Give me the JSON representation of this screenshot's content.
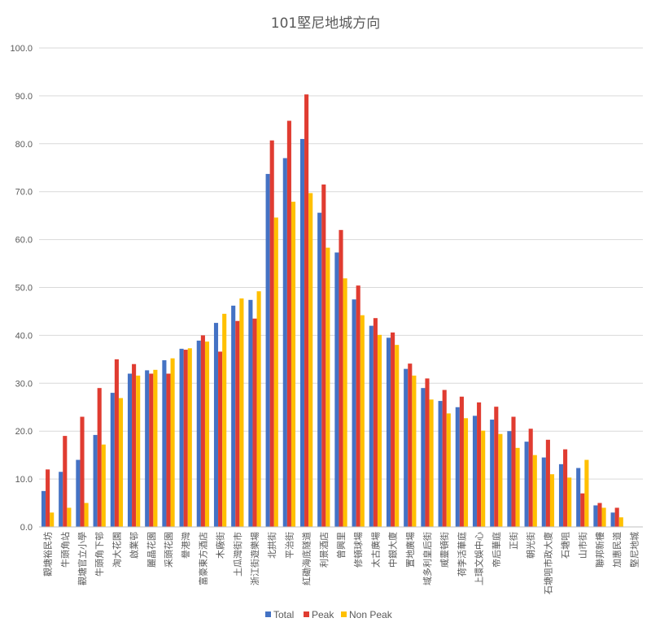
{
  "chart_data": {
    "type": "bar",
    "title": "101堅尼地城方向",
    "xlabel": "",
    "ylabel": "",
    "ylim": [
      0,
      100
    ],
    "yticks": [
      "0.0",
      "10.0",
      "20.0",
      "30.0",
      "40.0",
      "50.0",
      "60.0",
      "70.0",
      "80.0",
      "90.0",
      "100.0"
    ],
    "grid": true,
    "legend": "bottom",
    "categories": [
      "觀塘裕民坊",
      "牛頭角站",
      "觀塘官立小學",
      "牛頭角下邨",
      "淘大花園",
      "啟業邨",
      "麗晶花園",
      "采頭花園",
      "譽港灣",
      "富豪東方酒店",
      "木廠街",
      "土瓜灣街市",
      "浙江街遊樂場",
      "北拱街",
      "平治街",
      "紅磡海底隧道",
      "利景酒店",
      "曾興里",
      "修頓球場",
      "太古廣場",
      "中銀大廈",
      "置地廣場",
      "域多利皇后街",
      "威靈頓街",
      "荷李活華庭",
      "上環文娛中心",
      "帝后華庭",
      "正街",
      "朝光街",
      "石塘咀市政大廈",
      "石塘咀",
      "山市街",
      "聯邦新樓",
      "加惠民道",
      "堅尼地城"
    ],
    "series": [
      {
        "name": "Total",
        "color": "#4472C4",
        "values": [
          7.5,
          11.5,
          14.0,
          19.2,
          28.0,
          32.0,
          32.7,
          34.8,
          37.2,
          38.9,
          42.6,
          46.2,
          47.4,
          73.7,
          77.0,
          81.0,
          65.6,
          57.3,
          47.5,
          42.0,
          39.5,
          33.0,
          29.0,
          26.3,
          25.0,
          23.2,
          22.4,
          20.0,
          17.8,
          14.5,
          13.1,
          12.3,
          4.5,
          3.0,
          0
        ]
      },
      {
        "name": "Peak",
        "color": "#E03C31",
        "values": [
          12.0,
          19.0,
          23.0,
          29.0,
          35.0,
          34.0,
          32.0,
          32.0,
          37.0,
          40.0,
          36.6,
          43.0,
          43.5,
          80.7,
          84.8,
          90.3,
          71.5,
          62.0,
          50.4,
          43.6,
          40.6,
          34.1,
          31.0,
          28.6,
          27.2,
          26.0,
          25.1,
          23.0,
          20.5,
          18.2,
          16.2,
          7.0,
          5.0,
          4.0,
          0
        ]
      },
      {
        "name": "Non Peak",
        "color": "#FFC000",
        "values": [
          3.0,
          4.0,
          5.0,
          17.2,
          26.9,
          31.6,
          32.8,
          35.2,
          37.3,
          38.7,
          44.5,
          47.7,
          49.2,
          64.6,
          67.9,
          69.7,
          58.3,
          51.9,
          44.2,
          40.1,
          38.0,
          31.6,
          26.6,
          23.7,
          22.7,
          20.1,
          19.4,
          16.5,
          15.0,
          11.0,
          10.3,
          14.0,
          4.0,
          2.0,
          0
        ]
      }
    ]
  }
}
